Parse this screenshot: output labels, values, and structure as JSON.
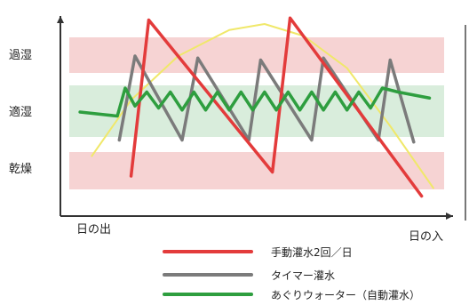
{
  "chart_data": {
    "type": "line",
    "x_labels": {
      "start": "日の出",
      "end": "日の入"
    },
    "bands": [
      {
        "label": "過湿",
        "color": "#f6d3d3"
      },
      {
        "label": "適湿",
        "color": "#d9eddc"
      },
      {
        "label": "乾燥",
        "color": "#f6d3d3"
      }
    ],
    "series": [
      {
        "name": "手動灌水2回／日",
        "color": "#e33b3b",
        "values": [
          [
            0.18,
            0.2
          ],
          [
            0.225,
            0.98
          ],
          [
            0.54,
            0.22
          ],
          [
            0.585,
            0.99
          ],
          [
            0.92,
            0.1
          ]
        ]
      },
      {
        "name": "タイマー灌水",
        "color": "#7b7b7b",
        "values": [
          [
            0.15,
            0.38
          ],
          [
            0.19,
            0.8
          ],
          [
            0.31,
            0.38
          ],
          [
            0.35,
            0.79
          ],
          [
            0.48,
            0.38
          ],
          [
            0.51,
            0.78
          ],
          [
            0.64,
            0.38
          ],
          [
            0.67,
            0.79
          ],
          [
            0.81,
            0.38
          ],
          [
            0.84,
            0.78
          ],
          [
            0.9,
            0.37
          ]
        ]
      },
      {
        "name": "あぐりウォーター（自動灌水）",
        "color": "#2e9e3f",
        "values": [
          [
            0.05,
            0.52
          ],
          [
            0.145,
            0.5
          ],
          [
            0.165,
            0.64
          ],
          [
            0.19,
            0.55
          ],
          [
            0.22,
            0.62
          ],
          [
            0.25,
            0.54
          ],
          [
            0.28,
            0.62
          ],
          [
            0.31,
            0.53
          ],
          [
            0.34,
            0.62
          ],
          [
            0.37,
            0.53
          ],
          [
            0.4,
            0.62
          ],
          [
            0.43,
            0.53
          ],
          [
            0.46,
            0.62
          ],
          [
            0.49,
            0.53
          ],
          [
            0.52,
            0.62
          ],
          [
            0.55,
            0.53
          ],
          [
            0.58,
            0.62
          ],
          [
            0.61,
            0.53
          ],
          [
            0.64,
            0.62
          ],
          [
            0.67,
            0.53
          ],
          [
            0.7,
            0.62
          ],
          [
            0.73,
            0.53
          ],
          [
            0.76,
            0.62
          ],
          [
            0.79,
            0.54
          ],
          [
            0.82,
            0.64
          ],
          [
            0.86,
            0.62
          ],
          [
            0.94,
            0.59
          ]
        ]
      },
      {
        "name": "",
        "color": "#f0e86a",
        "values": [
          [
            0.08,
            0.3
          ],
          [
            0.18,
            0.58
          ],
          [
            0.3,
            0.8
          ],
          [
            0.43,
            0.93
          ],
          [
            0.52,
            0.96
          ],
          [
            0.62,
            0.9
          ],
          [
            0.73,
            0.74
          ],
          [
            0.84,
            0.45
          ],
          [
            0.95,
            0.14
          ]
        ]
      }
    ],
    "xlim": [
      0,
      1
    ],
    "ylim": [
      0,
      1
    ]
  }
}
